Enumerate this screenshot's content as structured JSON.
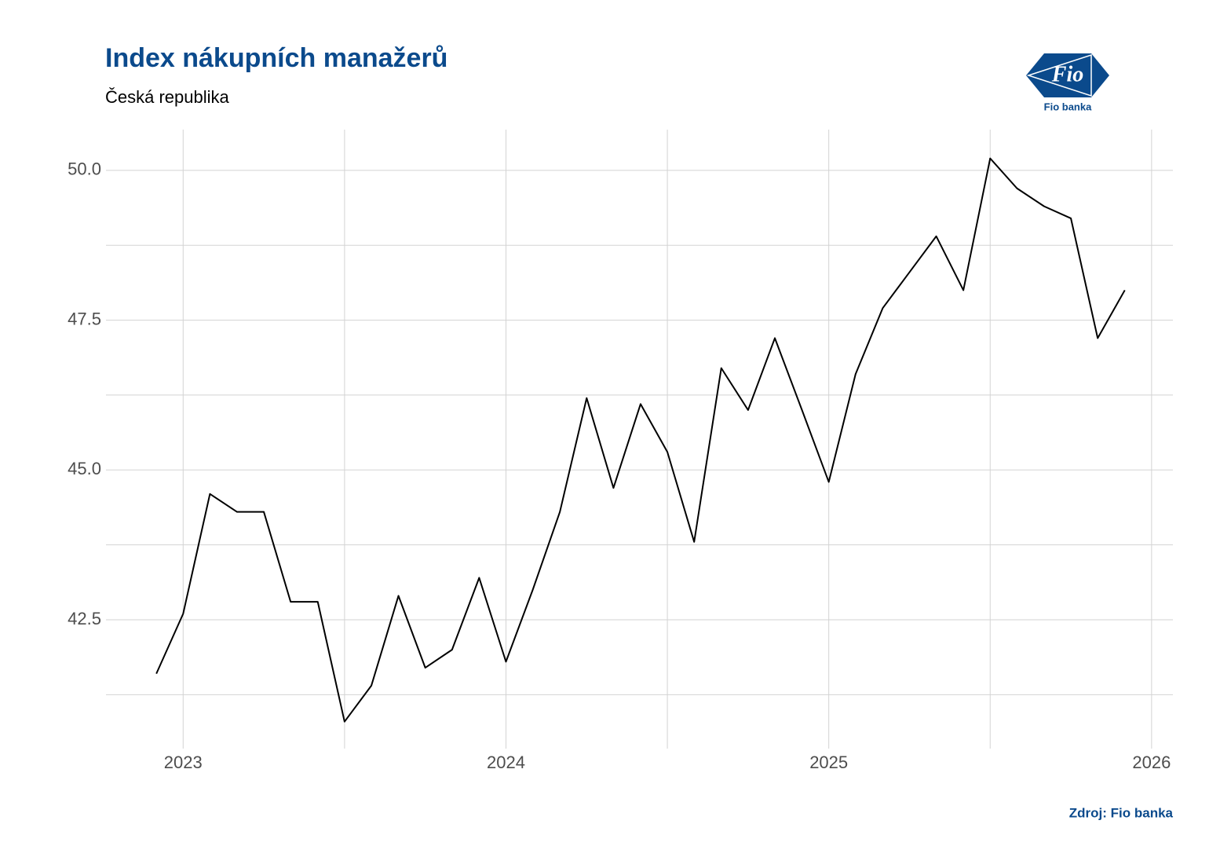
{
  "chart_data": {
    "type": "line",
    "title": "Index nákupních manažerů",
    "subtitle": "Česká republika",
    "source": "Zdroj: Fio banka",
    "logo": {
      "mark": "Fio",
      "name": "Fio banka"
    },
    "x": [
      2022.917,
      2023.0,
      2023.083,
      2023.167,
      2023.25,
      2023.333,
      2023.417,
      2023.5,
      2023.583,
      2023.667,
      2023.75,
      2023.833,
      2023.917,
      2024.0,
      2024.083,
      2024.167,
      2024.25,
      2024.333,
      2024.417,
      2024.5,
      2024.583,
      2024.667,
      2024.75,
      2024.833,
      2024.917,
      2025.0,
      2025.083,
      2025.167,
      2025.25,
      2025.333,
      2025.417,
      2025.5,
      2025.583,
      2025.667,
      2025.75,
      2025.833,
      2025.917
    ],
    "values": [
      41.6,
      42.6,
      44.6,
      44.3,
      44.3,
      42.8,
      42.8,
      40.8,
      41.4,
      42.9,
      41.7,
      42.0,
      43.2,
      41.8,
      43.0,
      44.3,
      46.2,
      44.7,
      46.1,
      45.3,
      43.8,
      46.7,
      46.0,
      47.2,
      46.0,
      44.8,
      46.6,
      47.7,
      48.3,
      48.9,
      48.0,
      50.2,
      49.7,
      49.4,
      49.2,
      47.2,
      48.0
    ],
    "color": "#000000",
    "xlim": [
      2022.761,
      2026.066
    ],
    "xticks": [
      2023,
      2024,
      2025,
      2026
    ],
    "x_minor_gridlines": [
      2023.5,
      2024.5,
      2025.5
    ],
    "ylim": [
      40.35,
      50.68
    ],
    "yticks": [
      42.5,
      {
        "value": 45,
        "label": "45.0"
      },
      47.5,
      {
        "value": 50,
        "label": "50.0"
      }
    ],
    "y_minor_gridlines": [
      41.25,
      43.75,
      46.25,
      48.75
    ],
    "grid": true
  }
}
